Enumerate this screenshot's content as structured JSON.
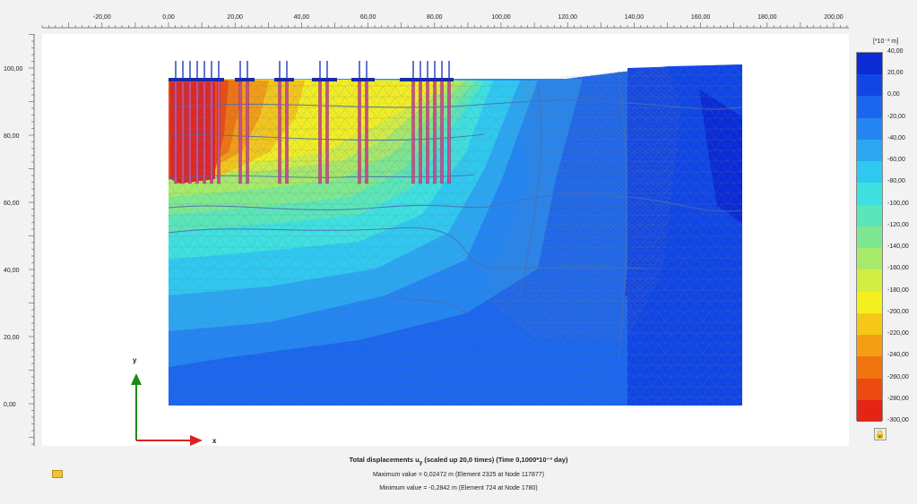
{
  "ruler_x_labels": [
    "-20,00",
    "0,00",
    "20,00",
    "40,00",
    "60,00",
    "80,00",
    "100,00",
    "120,00",
    "140,00",
    "160,00",
    "180,00",
    "200,00"
  ],
  "ruler_y_labels": [
    "100,00",
    "80,00",
    "60,00",
    "40,00",
    "20,00",
    "0,00"
  ],
  "axes": {
    "x_letter": "x",
    "y_letter": "y",
    "x_color": "#e02020",
    "y_color": "#1a8a1a"
  },
  "legend": {
    "unit": "[*10⁻³ m]",
    "entries": [
      {
        "label": "40,00",
        "color": "#0a2bd6"
      },
      {
        "label": "20,00",
        "color": "#1046e6"
      },
      {
        "label": "0,00",
        "color": "#1a66ee"
      },
      {
        "label": "-20,00",
        "color": "#2385f2"
      },
      {
        "label": "-40,00",
        "color": "#2ba6f2"
      },
      {
        "label": "-60,00",
        "color": "#2fc8f0"
      },
      {
        "label": "-80,00",
        "color": "#3ee0e0"
      },
      {
        "label": "-100,00",
        "color": "#5ae6b8"
      },
      {
        "label": "-120,00",
        "color": "#7ee890"
      },
      {
        "label": "-140,00",
        "color": "#a6ea6a"
      },
      {
        "label": "-160,00",
        "color": "#d2ee44"
      },
      {
        "label": "-180,00",
        "color": "#f4f020"
      },
      {
        "label": "-200,00",
        "color": "#f5c818"
      },
      {
        "label": "-220,00",
        "color": "#f59e12"
      },
      {
        "label": "-240,00",
        "color": "#f2740e"
      },
      {
        "label": "-260,00",
        "color": "#ec4a10"
      },
      {
        "label": "-280,00",
        "color": "#e42414"
      },
      {
        "label": "-300,00",
        "color": "#e01010"
      }
    ]
  },
  "footer": {
    "title_main": "Total displacements u",
    "title_sub": "y",
    "title_rest": " (scaled up 20,0 times) (Time 0,1000*10⁻³ day)",
    "max_text": "Maximum value = 0,02472 m (Element 2325 at Node 117877)",
    "min_text": "Minimum value = -0,2842 m (Element 724 at Node 1780)"
  },
  "icons": {
    "lock": "lock-icon",
    "clipboard": "clipboard-icon"
  }
}
